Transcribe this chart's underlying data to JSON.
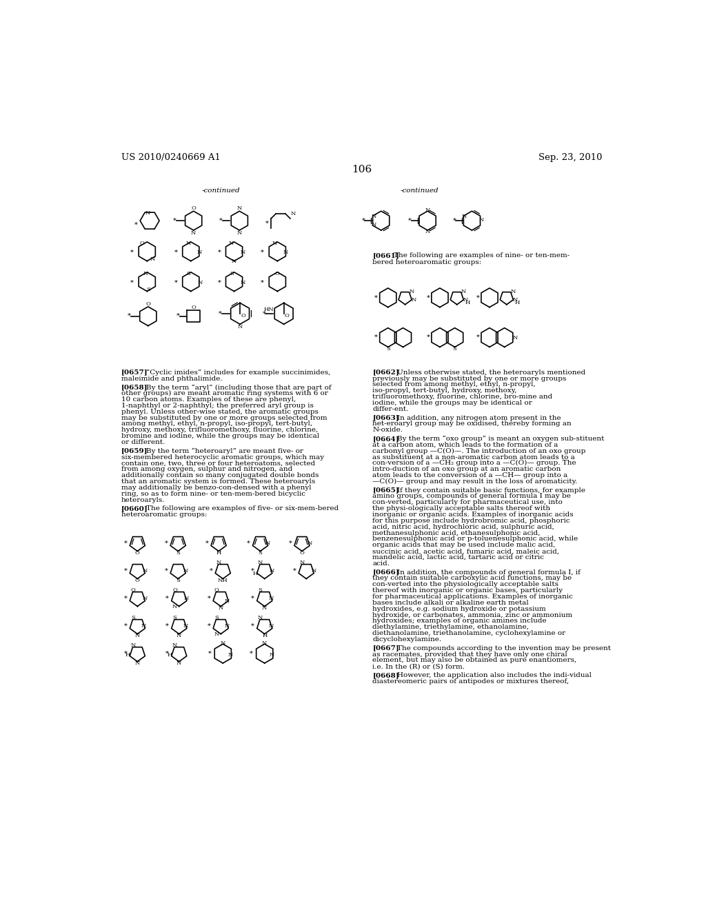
{
  "page_number": "106",
  "patent_number": "US 2010/0240669 A1",
  "patent_date": "Sep. 23, 2010",
  "background_color": "#ffffff",
  "text_color": "#000000",
  "font_size_header": 9.5,
  "font_size_body": 7.5,
  "font_size_page": 11,
  "paragraphs_left": [
    [
      "[0657]",
      "“Cyclic imides” includes for example succinimides, maleimide and phthalimide."
    ],
    [
      "[0658]",
      "By the term “aryl” (including those that are part of other groups) are meant aromatic ring systems with 6 or 10 carbon atoms. Examples of these are phenyl, 1-naphthyl or 2-naphthyl; the preferred aryl group is phenyl. Unless other-wise stated, the aromatic groups may be substituted by one or more groups selected from among methyl, ethyl, n-propyl, iso-propyl, tert-butyl, hydroxy, methoxy, trifluoromethoxy, fluorine, chlorine, bromine and iodine, while the groups may be identical or different."
    ],
    [
      "[0659]",
      "By the term “heteroaryl” are meant five- or six-membered heterocyclic aromatic groups, which may contain one, two, three or four heteroatoms, selected from among oxygen, sulphur and nitrogen, and additionally contain so many conjugated double bonds that an aromatic system is formed. These heteroaryls may additionally be benzo-con-densed with a phenyl ring, so as to form nine- or ten-mem-bered bicyclic heteroaryls."
    ],
    [
      "[0660]",
      "The following are examples of five- or six-mem-bered heteroaromatic groups:"
    ]
  ],
  "paragraphs_right": [
    [
      "[0662]",
      "Unless otherwise stated, the heteroaryls mentioned previously may be substituted by one or more groups selected from among methyl, ethyl, n-propyl, iso-propyl, tert-butyl, hydroxy, methoxy, trifluoromethoxy, fluorine, chlorine, bro-mine and iodine, while the groups may be identical or differ-ent."
    ],
    [
      "[0663]",
      "In addition, any nitrogen atom present in the het-eroaryl group may be oxidised, thereby forming an N-oxide."
    ],
    [
      "[0664]",
      "By the term “oxo group” is meant an oxygen sub-stituent at a carbon atom, which leads to the formation of a carbonyl group —C(O)—. The introduction of an oxo group as substituent at a non-aromatic carbon atom leads to a con-version of a —CH₂ group into a —C(O)— group. The intro-duction of an oxo group at an aromatic carbon atom leads to the conversion of a —CH— group into a —C(O)— group and may result in the loss of aromaticity."
    ],
    [
      "[0665]",
      "If they contain suitable basic functions, for example amino groups, compounds of general formula I may be con-verted, particularly for pharmaceutical use, into the physi-ologically acceptable salts thereof with inorganic or organic acids. Examples of inorganic acids for this purpose include hydrobromic acid, phosphoric acid, nitric acid, hydrochloric acid, sulphuric acid, methanesulphonic acid, ethanesulphonic acid, benzenesulphonic acid or p-toluenesulphonic acid, while organic acids that may be used include malic acid, succinic acid, acetic acid, fumaric acid, maleic acid, mandelic acid, lactic acid, tartaric acid or citric acid."
    ],
    [
      "[0666]",
      "In addition, the compounds of general formula I, if they contain suitable carboxylic acid functions, may be con-verted into the physiologically acceptable salts thereof with inorganic or organic bases, particularly for pharmaceutical applications. Examples of inorganic bases include alkali or alkaline earth metal hydroxides, e.g. sodium hydroxide or potassium hydroxide, or carbonates, ammonia, zinc or ammonium hydroxides; examples of organic amines include diethylamine, triethylamine, ethanolamine, diethanolamine, triethanolamine, cyclohexylamine or dicyclohexylamine."
    ],
    [
      "[0667]",
      "The compounds according to the invention may be present as racemates, provided that they have only one chiral element, but may also be obtained as pure enantiomers, i.e. In the (R) or (S) form."
    ],
    [
      "[0668]",
      "However, the application also includes the indi-vidual diastereomeric pairs of antipodes or mixtures thereof,"
    ]
  ]
}
